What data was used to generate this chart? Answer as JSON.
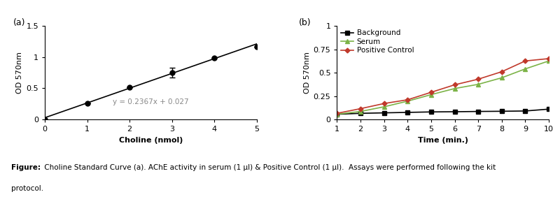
{
  "panel_a": {
    "label": "(a)",
    "x_data": [
      0,
      1,
      2,
      3,
      4,
      5
    ],
    "y_data": [
      0.0,
      0.263,
      0.51,
      0.75,
      0.98,
      1.16
    ],
    "y_err": [
      0,
      0,
      0,
      0.08,
      0,
      0
    ],
    "equation": "y = 0.2367x + 0.027",
    "line_color": "#000000",
    "marker_color": "#000000",
    "xlabel": "Choline (nmol)",
    "ylabel": "OD 570nm",
    "xlim": [
      0,
      5
    ],
    "ylim": [
      0,
      1.5
    ],
    "xticks": [
      0,
      1,
      2,
      3,
      4,
      5
    ],
    "yticks": [
      0,
      0.5,
      1.0,
      1.5
    ],
    "ytick_labels": [
      "0",
      "0.5",
      "1",
      "1.5"
    ]
  },
  "panel_b": {
    "label": "(b)",
    "time": [
      1,
      2,
      3,
      4,
      5,
      6,
      7,
      8,
      9,
      10
    ],
    "background": [
      0.055,
      0.065,
      0.07,
      0.075,
      0.08,
      0.082,
      0.085,
      0.087,
      0.09,
      0.11
    ],
    "serum": [
      0.055,
      0.085,
      0.135,
      0.195,
      0.265,
      0.33,
      0.375,
      0.445,
      0.54,
      0.625
    ],
    "positive_control": [
      0.065,
      0.115,
      0.17,
      0.21,
      0.29,
      0.37,
      0.43,
      0.51,
      0.625,
      0.65
    ],
    "background_color": "#000000",
    "serum_color": "#7cb347",
    "positive_control_color": "#c0392b",
    "xlabel": "Time (min.)",
    "ylabel": "OD 570nm",
    "xlim": [
      1,
      10
    ],
    "ylim": [
      0,
      1
    ],
    "xticks": [
      1,
      2,
      3,
      4,
      5,
      6,
      7,
      8,
      9,
      10
    ],
    "yticks": [
      0,
      0.25,
      0.5,
      0.75,
      1.0
    ],
    "ytick_labels": [
      "0",
      "0.25",
      "0.5",
      "0.75",
      "1"
    ],
    "legend_labels": [
      "Background",
      "Serum",
      "Positive Control"
    ]
  },
  "caption_bold": "Figure:",
  "caption_normal": " Choline Standard Curve (a). AChE activity in serum (1 μl) & Positive Control (1 μl).  Assays were performed following the kit",
  "caption_line2": "protocol.",
  "background_color": "#ffffff"
}
